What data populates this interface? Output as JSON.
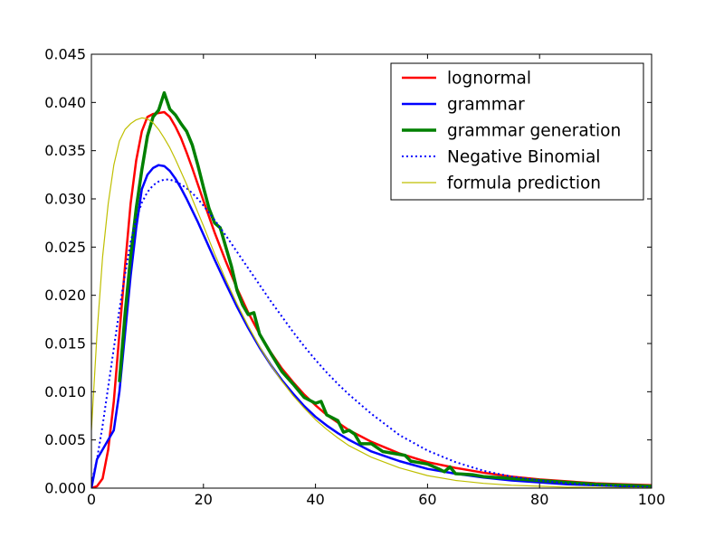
{
  "chart_data": {
    "type": "line",
    "title": "",
    "xlabel": "",
    "ylabel": "",
    "xlim": [
      0,
      100
    ],
    "ylim": [
      0,
      0.045
    ],
    "x_ticks": [
      0,
      20,
      40,
      60,
      80,
      100
    ],
    "x_tick_labels": [
      "0",
      "20",
      "40",
      "60",
      "80",
      "100"
    ],
    "y_ticks": [
      0,
      0.005,
      0.01,
      0.015,
      0.02,
      0.025,
      0.03,
      0.035,
      0.04,
      0.045
    ],
    "y_tick_labels": [
      "0.000",
      "0.005",
      "0.010",
      "0.015",
      "0.020",
      "0.025",
      "0.030",
      "0.035",
      "0.040",
      "0.045"
    ],
    "grid": false,
    "legend_position": "top-right",
    "series": [
      {
        "name": "lognormal",
        "color": "#ff0000",
        "line_style": "solid",
        "points": [
          [
            0,
            0
          ],
          [
            1,
            0.0002
          ],
          [
            2,
            0.001
          ],
          [
            3,
            0.004
          ],
          [
            4,
            0.009
          ],
          [
            5,
            0.016
          ],
          [
            6,
            0.023
          ],
          [
            7,
            0.0295
          ],
          [
            8,
            0.034
          ],
          [
            9,
            0.037
          ],
          [
            10,
            0.0385
          ],
          [
            11,
            0.0388
          ],
          [
            12,
            0.0389
          ],
          [
            13,
            0.039
          ],
          [
            14,
            0.0385
          ],
          [
            15,
            0.0375
          ],
          [
            16,
            0.0363
          ],
          [
            17,
            0.0348
          ],
          [
            18,
            0.0332
          ],
          [
            19,
            0.0315
          ],
          [
            20,
            0.0298
          ],
          [
            22,
            0.0265
          ],
          [
            24,
            0.0235
          ],
          [
            26,
            0.0207
          ],
          [
            28,
            0.0182
          ],
          [
            30,
            0.016
          ],
          [
            32,
            0.0141
          ],
          [
            34,
            0.0124
          ],
          [
            36,
            0.011
          ],
          [
            38,
            0.0097
          ],
          [
            40,
            0.0086
          ],
          [
            42,
            0.0076
          ],
          [
            44,
            0.0068
          ],
          [
            46,
            0.006
          ],
          [
            48,
            0.0054
          ],
          [
            50,
            0.0048
          ],
          [
            55,
            0.0036
          ],
          [
            60,
            0.0027
          ],
          [
            65,
            0.0021
          ],
          [
            70,
            0.0016
          ],
          [
            75,
            0.0012
          ],
          [
            80,
            0.0009
          ],
          [
            85,
            0.0007
          ],
          [
            90,
            0.0005
          ],
          [
            95,
            0.0004
          ],
          [
            100,
            0.0003
          ]
        ]
      },
      {
        "name": "grammar",
        "color": "#0000ff",
        "line_style": "solid",
        "points": [
          [
            0,
            0
          ],
          [
            1,
            0.003
          ],
          [
            2,
            0.004
          ],
          [
            3,
            0.005
          ],
          [
            4,
            0.006
          ],
          [
            5,
            0.01
          ],
          [
            6,
            0.016
          ],
          [
            7,
            0.022
          ],
          [
            8,
            0.027
          ],
          [
            9,
            0.031
          ],
          [
            10,
            0.0325
          ],
          [
            11,
            0.0332
          ],
          [
            12,
            0.0335
          ],
          [
            13,
            0.0334
          ],
          [
            14,
            0.0329
          ],
          [
            15,
            0.0321
          ],
          [
            16,
            0.0311
          ],
          [
            17,
            0.03
          ],
          [
            18,
            0.0288
          ],
          [
            19,
            0.0276
          ],
          [
            20,
            0.0263
          ],
          [
            22,
            0.0237
          ],
          [
            24,
            0.0212
          ],
          [
            26,
            0.0188
          ],
          [
            28,
            0.0166
          ],
          [
            30,
            0.0146
          ],
          [
            32,
            0.0128
          ],
          [
            34,
            0.0112
          ],
          [
            36,
            0.0098
          ],
          [
            38,
            0.0085
          ],
          [
            40,
            0.0074
          ],
          [
            42,
            0.0065
          ],
          [
            44,
            0.0057
          ],
          [
            46,
            0.005
          ],
          [
            48,
            0.0044
          ],
          [
            50,
            0.0038
          ],
          [
            55,
            0.0028
          ],
          [
            60,
            0.002
          ],
          [
            65,
            0.0015
          ],
          [
            70,
            0.0011
          ],
          [
            75,
            0.0008
          ],
          [
            80,
            0.0006
          ],
          [
            85,
            0.0004
          ],
          [
            90,
            0.0003
          ],
          [
            95,
            0.0002
          ],
          [
            100,
            0.0002
          ]
        ]
      },
      {
        "name": "grammar generation",
        "color": "#008000",
        "line_style": "solid",
        "points": [
          [
            5,
            0.011
          ],
          [
            6,
            0.018
          ],
          [
            7,
            0.024
          ],
          [
            8,
            0.029
          ],
          [
            9,
            0.033
          ],
          [
            10,
            0.0365
          ],
          [
            11,
            0.0385
          ],
          [
            12,
            0.0392
          ],
          [
            13,
            0.041
          ],
          [
            14,
            0.0393
          ],
          [
            15,
            0.0387
          ],
          [
            16,
            0.0378
          ],
          [
            17,
            0.037
          ],
          [
            18,
            0.0356
          ],
          [
            19,
            0.0335
          ],
          [
            20,
            0.0312
          ],
          [
            21,
            0.029
          ],
          [
            22,
            0.0275
          ],
          [
            23,
            0.027
          ],
          [
            24,
            0.025
          ],
          [
            25,
            0.023
          ],
          [
            26,
            0.0205
          ],
          [
            27,
            0.019
          ],
          [
            28,
            0.018
          ],
          [
            29,
            0.0182
          ],
          [
            30,
            0.016
          ],
          [
            31,
            0.015
          ],
          [
            32,
            0.014
          ],
          [
            34,
            0.0121
          ],
          [
            36,
            0.0108
          ],
          [
            38,
            0.0094
          ],
          [
            40,
            0.0088
          ],
          [
            41,
            0.009
          ],
          [
            42,
            0.0076
          ],
          [
            44,
            0.007
          ],
          [
            45,
            0.0058
          ],
          [
            46,
            0.006
          ],
          [
            47,
            0.0056
          ],
          [
            48,
            0.0046
          ],
          [
            50,
            0.0046
          ],
          [
            52,
            0.0038
          ],
          [
            54,
            0.0036
          ],
          [
            56,
            0.0034
          ],
          [
            57,
            0.0028
          ],
          [
            58,
            0.0027
          ],
          [
            60,
            0.0025
          ],
          [
            62,
            0.002
          ],
          [
            63,
            0.0017
          ],
          [
            64,
            0.0022
          ],
          [
            65,
            0.0015
          ],
          [
            68,
            0.0014
          ],
          [
            70,
            0.0012
          ],
          [
            75,
            0.001
          ],
          [
            80,
            0.0008
          ],
          [
            85,
            0.0006
          ],
          [
            90,
            0.0004
          ],
          [
            95,
            0.0003
          ],
          [
            100,
            0.0002
          ]
        ]
      },
      {
        "name": "Negative Binomial",
        "color": "#0000ff",
        "line_style": "dotted",
        "points": [
          [
            0,
            0.0005
          ],
          [
            1,
            0.003
          ],
          [
            2,
            0.0065
          ],
          [
            3,
            0.0105
          ],
          [
            4,
            0.0145
          ],
          [
            5,
            0.0185
          ],
          [
            6,
            0.0222
          ],
          [
            7,
            0.0255
          ],
          [
            8,
            0.0279
          ],
          [
            9,
            0.0296
          ],
          [
            10,
            0.0307
          ],
          [
            11,
            0.0314
          ],
          [
            12,
            0.0318
          ],
          [
            13,
            0.032
          ],
          [
            14,
            0.032
          ],
          [
            15,
            0.0318
          ],
          [
            16,
            0.0315
          ],
          [
            17,
            0.0311
          ],
          [
            18,
            0.0306
          ],
          [
            19,
            0.03
          ],
          [
            20,
            0.0293
          ],
          [
            22,
            0.0278
          ],
          [
            24,
            0.0262
          ],
          [
            26,
            0.0245
          ],
          [
            28,
            0.0228
          ],
          [
            30,
            0.0211
          ],
          [
            32,
            0.0194
          ],
          [
            34,
            0.0178
          ],
          [
            36,
            0.0162
          ],
          [
            38,
            0.0147
          ],
          [
            40,
            0.0133
          ],
          [
            42,
            0.012
          ],
          [
            44,
            0.0108
          ],
          [
            46,
            0.0097
          ],
          [
            48,
            0.0087
          ],
          [
            50,
            0.0077
          ],
          [
            55,
            0.0055
          ],
          [
            60,
            0.0039
          ],
          [
            65,
            0.0027
          ],
          [
            70,
            0.0018
          ],
          [
            75,
            0.0012
          ],
          [
            80,
            0.0008
          ],
          [
            85,
            0.0005
          ],
          [
            90,
            0.0003
          ],
          [
            95,
            0.0002
          ],
          [
            100,
            0.0001
          ]
        ]
      },
      {
        "name": "formula prediction",
        "color": "#bfbf00",
        "line_style": "solid",
        "points": [
          [
            0,
            0.006
          ],
          [
            1,
            0.016
          ],
          [
            2,
            0.024
          ],
          [
            3,
            0.0295
          ],
          [
            4,
            0.0335
          ],
          [
            5,
            0.036
          ],
          [
            6,
            0.0372
          ],
          [
            7,
            0.0378
          ],
          [
            8,
            0.0382
          ],
          [
            9,
            0.0384
          ],
          [
            10,
            0.0383
          ],
          [
            11,
            0.0379
          ],
          [
            12,
            0.0372
          ],
          [
            13,
            0.0363
          ],
          [
            14,
            0.0353
          ],
          [
            15,
            0.0341
          ],
          [
            16,
            0.0328
          ],
          [
            17,
            0.0315
          ],
          [
            18,
            0.03
          ],
          [
            19,
            0.0286
          ],
          [
            20,
            0.0272
          ],
          [
            22,
            0.0243
          ],
          [
            24,
            0.0216
          ],
          [
            26,
            0.0191
          ],
          [
            28,
            0.0168
          ],
          [
            30,
            0.0147
          ],
          [
            32,
            0.0128
          ],
          [
            34,
            0.0111
          ],
          [
            36,
            0.0096
          ],
          [
            38,
            0.0083
          ],
          [
            40,
            0.0071
          ],
          [
            42,
            0.0061
          ],
          [
            44,
            0.0052
          ],
          [
            46,
            0.0044
          ],
          [
            48,
            0.0038
          ],
          [
            50,
            0.0032
          ],
          [
            55,
            0.0021
          ],
          [
            60,
            0.0013
          ],
          [
            65,
            0.0008
          ],
          [
            70,
            0.0005
          ],
          [
            75,
            0.0003
          ],
          [
            80,
            0.0002
          ],
          [
            85,
            0.0001
          ],
          [
            90,
            7e-05
          ],
          [
            95,
            4e-05
          ],
          [
            100,
            2e-05
          ]
        ]
      }
    ]
  }
}
